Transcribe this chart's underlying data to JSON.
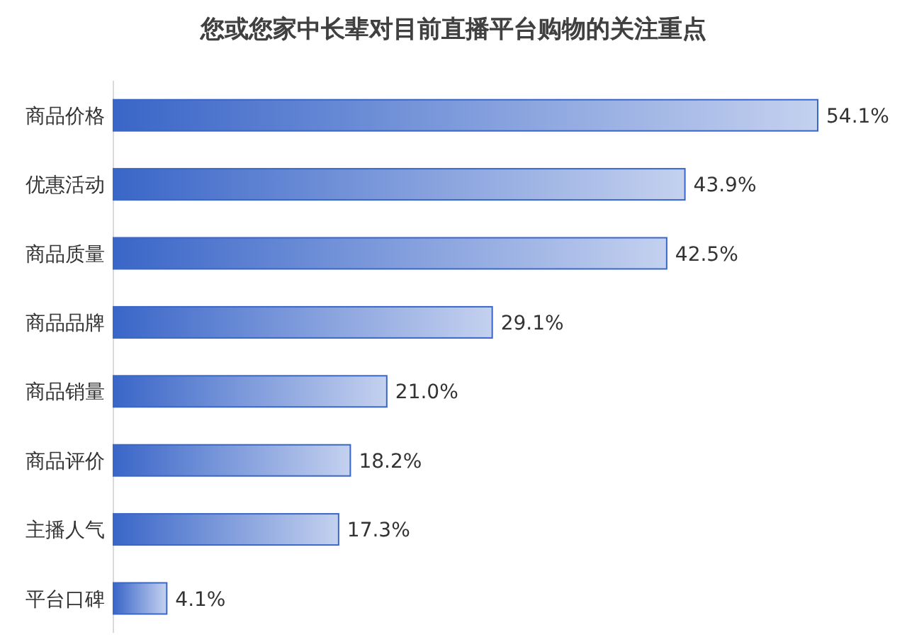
{
  "chart_data": {
    "type": "bar",
    "orientation": "horizontal",
    "title": "您或您家中长辈对目前直播平台购物的关注重点",
    "categories": [
      "商品价格",
      "优惠活动",
      "商品质量",
      "商品品牌",
      "商品销量",
      "商品评价",
      "主播人气",
      "平台口碑"
    ],
    "values": [
      54.1,
      43.9,
      42.5,
      29.1,
      21.0,
      18.2,
      17.3,
      4.1
    ],
    "value_labels": [
      "54.1%",
      "43.9%",
      "42.5%",
      "29.1%",
      "21.0%",
      "18.2%",
      "17.3%",
      "4.1%"
    ],
    "color": "#3a66c8"
  }
}
